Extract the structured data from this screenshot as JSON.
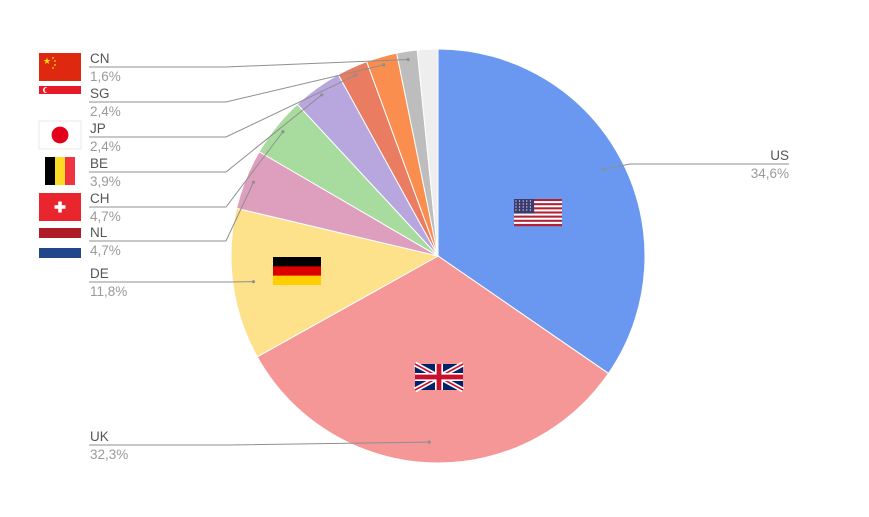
{
  "chart_data": {
    "type": "pie",
    "slices": [
      {
        "label": "US",
        "value_label": "34,6%",
        "value": 34.6,
        "color": "#6a98f0",
        "flag": "us-flag"
      },
      {
        "label": "UK",
        "value_label": "32,3%",
        "value": 32.3,
        "color": "#f59796",
        "flag": "uk-flag"
      },
      {
        "label": "DE",
        "value_label": "11,8%",
        "value": 11.8,
        "color": "#fde18b",
        "flag": "de-flag"
      },
      {
        "label": "NL",
        "value_label": "4,7%",
        "value": 4.7,
        "color": "#de9fbe",
        "flag": "nl-flag"
      },
      {
        "label": "CH",
        "value_label": "4,7%",
        "value": 4.7,
        "color": "#a8dc9f",
        "flag": "ch-flag"
      },
      {
        "label": "BE",
        "value_label": "3,9%",
        "value": 3.9,
        "color": "#b8a6de",
        "flag": "be-flag"
      },
      {
        "label": "JP",
        "value_label": "2,4%",
        "value": 2.4,
        "color": "#ea7c62",
        "flag": "jp-flag"
      },
      {
        "label": "SG",
        "value_label": "2,4%",
        "value": 2.4,
        "color": "#f98e4f",
        "flag": "sg-flag"
      },
      {
        "label": "CN",
        "value_label": "1,6%",
        "value": 1.6,
        "color": "#bdbdbd",
        "flag": "cn-flag"
      },
      {
        "label": "",
        "value_label": "",
        "value": 1.6,
        "color": "#eeeeee",
        "flag": ""
      }
    ],
    "legend_placement": "left",
    "flag_colors": {
      "red": "#de2910",
      "yellow": "#ffde00",
      "white": "#ffffff",
      "black": "#000000",
      "navy": "#012169",
      "us_blue": "#3c3b6e",
      "us_red": "#b22234",
      "nl_red": "#ae1c28",
      "nl_blue": "#21468b",
      "be_yellow": "#fdda24",
      "be_red": "#ef3340",
      "ch_red": "#e9262d",
      "jp_red": "#e2001a",
      "sg_red": "#e71a2a",
      "de_red": "#dd0000",
      "de_gold": "#ffce00"
    }
  }
}
